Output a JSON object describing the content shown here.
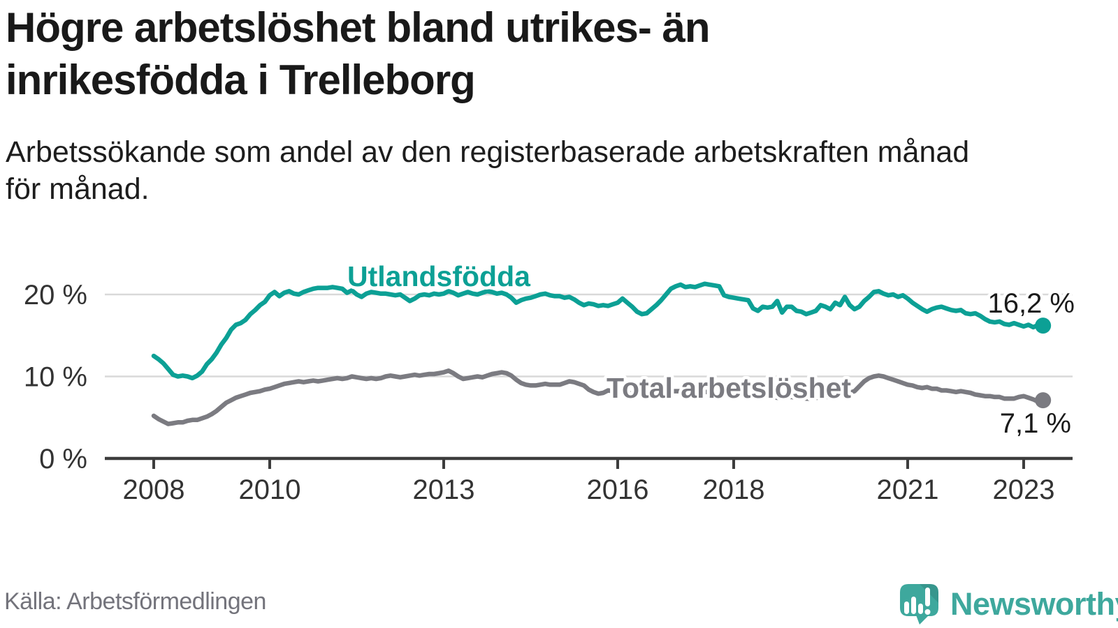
{
  "header": {
    "title_line1": "Högre arbetslöshet bland utrikes- än",
    "title_line2": "inrikesfödda i Trelleborg",
    "subtitle_line1": "Arbetssökande som andel av den registerbaserade arbetskraften månad",
    "subtitle_line2": "för månad."
  },
  "footer": {
    "source": "Källa: Arbetsförmedlingen",
    "brand": "Newsworthy"
  },
  "colors": {
    "accent_teal": "#0ca095",
    "line_gray": "#7b7b81",
    "logo_teal": "#3ea89d",
    "gridline": "#d9d9d9",
    "axis": "#3d3d3d",
    "tick_text": "#333333",
    "value_text": "#1a1a1a"
  },
  "chart_data": {
    "type": "line",
    "title": "Högre arbetslöshet bland utrikes- än inrikesfödda i Trelleborg",
    "subtitle": "Arbetssökande som andel av den registerbaserade arbetskraften månad för månad.",
    "xlabel": "",
    "ylabel": "",
    "unit": "%",
    "x_start_year": 2008,
    "points_per_year": 12,
    "x_end_label_values": [
      "16,2 %",
      "7,1 %"
    ],
    "x_ticks": [
      {
        "year": 2008,
        "label": "2008"
      },
      {
        "year": 2010,
        "label": "2010"
      },
      {
        "year": 2013,
        "label": "2013"
      },
      {
        "year": 2016,
        "label": "2016"
      },
      {
        "year": 2018,
        "label": "2018"
      },
      {
        "year": 2021,
        "label": "2021"
      },
      {
        "year": 2023,
        "label": "2023"
      }
    ],
    "y_ticks": [
      {
        "value": 0,
        "label": "0 %"
      },
      {
        "value": 10,
        "label": "10 %"
      },
      {
        "value": 20,
        "label": "20 %"
      }
    ],
    "ylim": [
      0,
      22.7
    ],
    "grid": "horizontal-at-10-and-20",
    "legend_position": "inline-labels-on-lines",
    "series": [
      {
        "name": "Utlandsfödda",
        "color": "#0ca095",
        "end_label": "16,2 %",
        "end_value": 16.2,
        "values": [
          12.5,
          12.1,
          11.6,
          10.9,
          10.2,
          10.0,
          10.1,
          10.0,
          9.8,
          10.1,
          10.6,
          11.5,
          12.1,
          12.9,
          13.9,
          14.7,
          15.7,
          16.3,
          16.5,
          16.9,
          17.6,
          18.1,
          18.7,
          19.1,
          19.9,
          20.3,
          19.8,
          20.2,
          20.4,
          20.1,
          20.0,
          20.3,
          20.5,
          20.7,
          20.8,
          20.8,
          20.8,
          20.9,
          20.8,
          20.7,
          20.2,
          20.5,
          20.0,
          19.7,
          20.1,
          20.3,
          20.2,
          20.1,
          20.1,
          20.0,
          19.9,
          20.0,
          19.6,
          19.2,
          19.5,
          19.9,
          20.0,
          19.9,
          20.1,
          20.0,
          20.1,
          20.4,
          20.2,
          19.9,
          20.1,
          20.3,
          20.1,
          20.0,
          20.2,
          20.4,
          20.3,
          20.1,
          20.2,
          20.0,
          19.6,
          19.0,
          19.3,
          19.5,
          19.6,
          19.8,
          20.0,
          20.1,
          19.9,
          19.8,
          19.8,
          19.6,
          19.7,
          19.4,
          19.0,
          18.7,
          18.9,
          18.8,
          18.6,
          18.7,
          18.6,
          18.8,
          19.0,
          19.5,
          19.0,
          18.5,
          17.9,
          17.6,
          17.7,
          18.2,
          18.7,
          19.3,
          20.0,
          20.7,
          21.0,
          21.2,
          20.9,
          21.0,
          20.9,
          21.1,
          21.3,
          21.2,
          21.1,
          21.0,
          19.9,
          19.7,
          19.6,
          19.5,
          19.4,
          19.3,
          18.3,
          18.0,
          18.5,
          18.4,
          18.5,
          19.2,
          17.8,
          18.5,
          18.5,
          18.0,
          17.9,
          17.6,
          17.8,
          18.0,
          18.7,
          18.5,
          18.2,
          19.0,
          18.7,
          19.7,
          18.7,
          18.2,
          18.5,
          19.2,
          19.7,
          20.3,
          20.4,
          20.1,
          19.9,
          20.0,
          19.7,
          19.9,
          19.5,
          19.0,
          18.6,
          18.2,
          17.9,
          18.2,
          18.4,
          18.5,
          18.3,
          18.1,
          18.0,
          18.1,
          17.7,
          17.6,
          17.7,
          17.4,
          17.0,
          16.7,
          16.6,
          16.7,
          16.4,
          16.3,
          16.5,
          16.3,
          16.1,
          16.3,
          16.0,
          16.3,
          16.2
        ]
      },
      {
        "name": "Total arbetslöshet",
        "color": "#7b7b81",
        "end_label": "7,1 %",
        "end_value": 7.1,
        "values": [
          5.2,
          4.8,
          4.5,
          4.2,
          4.3,
          4.4,
          4.4,
          4.6,
          4.7,
          4.7,
          4.9,
          5.1,
          5.4,
          5.8,
          6.3,
          6.8,
          7.1,
          7.4,
          7.6,
          7.8,
          8.0,
          8.1,
          8.2,
          8.4,
          8.5,
          8.7,
          8.9,
          9.1,
          9.2,
          9.3,
          9.4,
          9.3,
          9.4,
          9.5,
          9.4,
          9.5,
          9.6,
          9.7,
          9.8,
          9.7,
          9.8,
          10.0,
          9.9,
          9.8,
          9.7,
          9.8,
          9.7,
          9.8,
          10.0,
          10.1,
          10.0,
          9.9,
          10.0,
          10.1,
          10.2,
          10.1,
          10.2,
          10.3,
          10.3,
          10.4,
          10.5,
          10.7,
          10.4,
          10.0,
          9.7,
          9.8,
          9.9,
          10.0,
          9.9,
          10.1,
          10.3,
          10.4,
          10.5,
          10.4,
          10.1,
          9.6,
          9.2,
          9.0,
          8.9,
          8.9,
          9.0,
          9.1,
          9.0,
          9.0,
          9.0,
          9.2,
          9.4,
          9.3,
          9.1,
          8.9,
          8.4,
          8.1,
          7.9,
          8.0,
          8.3,
          8.2,
          8.2,
          8.1,
          8.0,
          7.9,
          7.8,
          7.8,
          7.9,
          8.0,
          8.0,
          8.1,
          8.1,
          8.2,
          8.2,
          8.2,
          8.1,
          8.1,
          8.0,
          8.0,
          8.1,
          8.1,
          8.2,
          8.2,
          8.1,
          8.1,
          8.0,
          7.9,
          7.8,
          7.7,
          7.7,
          7.6,
          7.6,
          7.5,
          7.5,
          7.4,
          7.4,
          7.5,
          7.5,
          7.4,
          7.4,
          7.3,
          7.3,
          7.4,
          7.4,
          7.5,
          7.5,
          7.6,
          7.7,
          7.8,
          8.0,
          8.2,
          8.8,
          9.4,
          9.8,
          10.0,
          10.1,
          10.0,
          9.8,
          9.6,
          9.4,
          9.2,
          9.0,
          8.9,
          8.7,
          8.6,
          8.7,
          8.5,
          8.5,
          8.3,
          8.3,
          8.2,
          8.1,
          8.2,
          8.1,
          8.0,
          7.8,
          7.7,
          7.6,
          7.6,
          7.5,
          7.5,
          7.3,
          7.3,
          7.3,
          7.5,
          7.6,
          7.4,
          7.2,
          6.9,
          7.1
        ]
      }
    ]
  }
}
